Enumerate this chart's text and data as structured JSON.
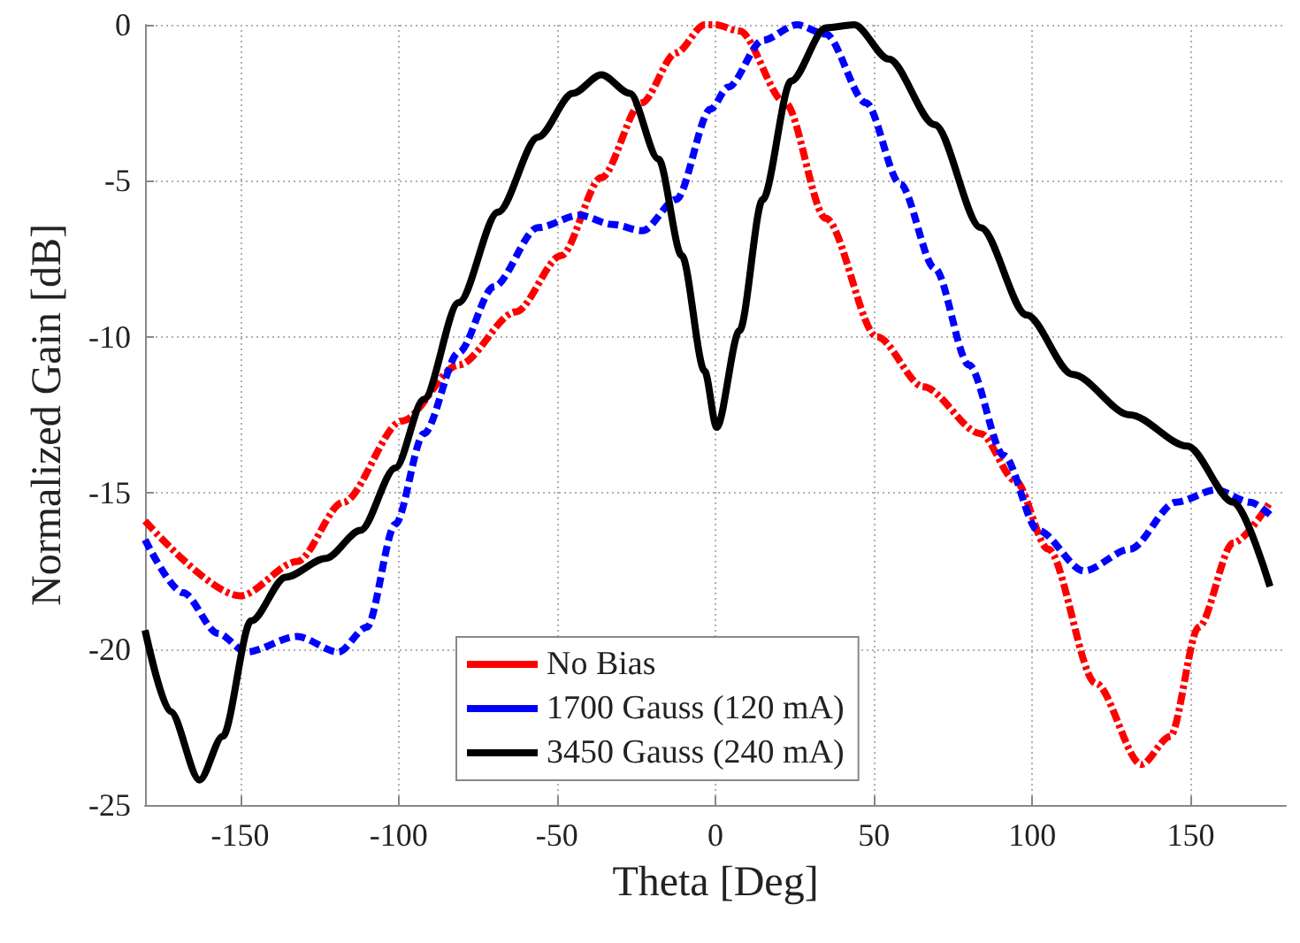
{
  "chart_data": {
    "type": "line",
    "xlabel": "Theta [Deg]",
    "ylabel": "Normalized Gain [dB]",
    "xlim": [
      -180,
      180
    ],
    "ylim": [
      -25,
      0
    ],
    "xticks": [
      -150,
      -100,
      -50,
      0,
      50,
      100,
      150
    ],
    "yticks": [
      -25,
      -20,
      -15,
      -10,
      -5,
      0
    ],
    "grid": true,
    "legend": "bottom",
    "marker": "none",
    "series": [
      {
        "name": "No Bias",
        "color": "#ff0000",
        "line_style": "dashed",
        "x": [
          -180,
          -150,
          -132,
          -117.5,
          -99,
          -81,
          -63,
          -48.7,
          -36,
          -23.3,
          -12.4,
          -3.4,
          0,
          7.6,
          22,
          34.8,
          51,
          65.6,
          83.7,
          94.6,
          105,
          120,
          134.4,
          143.5,
          152.5,
          163.4,
          175
        ],
        "values": [
          -15.9,
          -18.3,
          -17.2,
          -15.3,
          -12.7,
          -10.9,
          -9.2,
          -7.4,
          -4.9,
          -2.5,
          -0.9,
          0,
          0,
          -0.2,
          -2.5,
          -6.2,
          -10,
          -11.6,
          -13.1,
          -14.6,
          -16.8,
          -21.1,
          -23.7,
          -22.8,
          -19.3,
          -16.6,
          -15.3
        ]
      },
      {
        "name": "1700 Gauss (120 mA)",
        "color": "#0000ff",
        "line_style": "dashed",
        "x": [
          -180,
          -168,
          -157,
          -148,
          -132,
          -119,
          -110,
          -101,
          -92,
          -81,
          -70,
          -56,
          -43,
          -32.4,
          -23,
          -12.4,
          -1.5,
          4,
          14.9,
          25.7,
          34.8,
          47.5,
          58.3,
          69.2,
          80,
          91,
          101.8,
          116.3,
          130.8,
          145.3,
          158,
          168.8,
          175
        ],
        "values": [
          -16.5,
          -18.2,
          -19.5,
          -20.1,
          -19.6,
          -20.1,
          -19.3,
          -16,
          -13.1,
          -10.5,
          -8.4,
          -6.5,
          -6.1,
          -6.4,
          -6.6,
          -5.6,
          -2.7,
          -2,
          -0.5,
          0,
          -0.3,
          -2.5,
          -5.1,
          -7.8,
          -10.9,
          -13.8,
          -16.2,
          -17.5,
          -16.8,
          -15.3,
          -14.9,
          -15.3,
          -15.7
        ]
      },
      {
        "name": "3450 Gauss (240 mA)",
        "color": "#000000",
        "line_style": "solid",
        "x": [
          -180,
          -172,
          -162.8,
          -155.5,
          -146.5,
          -135.6,
          -123,
          -112,
          -101,
          -92,
          -81,
          -68.6,
          -56,
          -45,
          -36,
          -27,
          -18,
          -10.6,
          -3.4,
          0.4,
          7.6,
          14.9,
          23.9,
          34.8,
          43.8,
          54.7,
          69.2,
          83.7,
          98.2,
          112.7,
          130.8,
          148.9,
          163.4,
          175
        ],
        "values": [
          -19.4,
          -22,
          -24.2,
          -22.8,
          -19.1,
          -17.7,
          -17.1,
          -16.2,
          -14.2,
          -12,
          -8.9,
          -6,
          -3.6,
          -2.2,
          -1.6,
          -2.2,
          -4.3,
          -7.4,
          -11.1,
          -12.9,
          -9.8,
          -5.6,
          -1.8,
          -0.1,
          0,
          -1.1,
          -3.2,
          -6.5,
          -9.3,
          -11.2,
          -12.5,
          -13.5,
          -15.3,
          -18
        ]
      }
    ]
  }
}
